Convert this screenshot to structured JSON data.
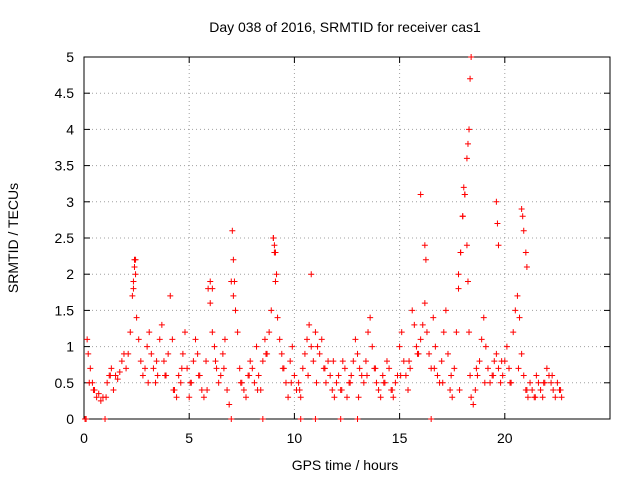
{
  "chart_data": {
    "type": "scatter",
    "title": "Day 038 of 2016, SRMTID for receiver cas1",
    "xlabel": "GPS time / hours",
    "ylabel": "SRMTID / TECUs",
    "xlim": [
      0,
      25
    ],
    "ylim": [
      0,
      5
    ],
    "grid": true,
    "marker": "+",
    "color": "#ff0000",
    "x_ticks": [
      "0",
      "5",
      "10",
      "15",
      "20"
    ],
    "x_tick_values": [
      0,
      5,
      10,
      15,
      20
    ],
    "y_ticks": [
      "0",
      "0.5",
      "1",
      "1.5",
      "2",
      "2.5",
      "3",
      "3.5",
      "4",
      "4.5",
      "5"
    ],
    "y_tick_values": [
      0,
      0.5,
      1,
      1.5,
      2,
      2.5,
      3,
      3.5,
      4,
      4.5,
      5
    ],
    "series": [
      {
        "name": "SRMTID",
        "x": [
          0.05,
          0.1,
          1.0,
          7.0,
          8.5,
          10.3,
          11.0,
          12.2,
          13.0,
          16.5,
          0.15,
          0.2,
          0.3,
          0.4,
          0.5,
          0.6,
          0.7,
          0.8,
          0.9,
          1.1,
          1.2,
          1.3,
          1.4,
          1.5,
          1.6,
          1.7,
          1.8,
          1.9,
          2.0,
          2.1,
          2.2,
          2.3,
          2.35,
          2.4,
          2.45,
          2.5,
          2.6,
          2.7,
          2.8,
          2.9,
          3.0,
          3.1,
          3.2,
          3.3,
          3.4,
          3.5,
          3.6,
          3.7,
          3.8,
          3.9,
          4.0,
          4.1,
          4.2,
          4.3,
          4.4,
          4.5,
          4.6,
          4.7,
          4.8,
          4.9,
          5.0,
          5.1,
          5.2,
          5.3,
          5.4,
          5.5,
          5.6,
          5.7,
          5.8,
          5.9,
          6.0,
          6.1,
          6.2,
          6.3,
          6.4,
          6.5,
          6.6,
          6.7,
          6.8,
          6.9,
          7.0,
          7.1,
          7.2,
          7.3,
          7.4,
          7.5,
          7.6,
          7.7,
          7.8,
          7.9,
          8.0,
          8.1,
          8.2,
          8.3,
          8.4,
          8.5,
          8.6,
          8.7,
          8.8,
          8.9,
          9.0,
          9.05,
          9.1,
          9.2,
          9.3,
          9.4,
          9.5,
          9.6,
          9.7,
          9.8,
          9.9,
          10.0,
          10.1,
          10.2,
          10.3,
          10.4,
          10.5,
          10.6,
          10.7,
          10.8,
          10.9,
          11.0,
          11.1,
          11.2,
          11.3,
          11.4,
          11.5,
          11.6,
          11.7,
          11.8,
          11.9,
          12.0,
          12.1,
          12.2,
          12.3,
          12.4,
          12.5,
          12.6,
          12.7,
          12.8,
          12.9,
          13.0,
          13.1,
          13.2,
          13.3,
          13.4,
          13.5,
          13.6,
          13.7,
          13.8,
          13.9,
          14.0,
          14.1,
          14.2,
          14.3,
          14.4,
          14.5,
          14.6,
          14.7,
          14.8,
          14.9,
          15.0,
          15.1,
          15.2,
          15.3,
          15.4,
          15.5,
          15.6,
          15.7,
          15.8,
          15.9,
          16.0,
          16.1,
          16.2,
          16.3,
          16.4,
          16.5,
          16.6,
          16.7,
          16.8,
          16.9,
          17.0,
          17.1,
          17.2,
          17.3,
          17.4,
          17.5,
          17.6,
          17.7,
          17.8,
          17.9,
          18.0,
          18.1,
          18.2,
          18.25,
          18.3,
          18.35,
          18.4,
          18.5,
          18.6,
          18.7,
          18.8,
          18.9,
          19.0,
          19.1,
          19.2,
          19.3,
          19.4,
          19.5,
          19.6,
          19.7,
          19.8,
          19.9,
          20.0,
          20.1,
          20.2,
          20.3,
          20.4,
          20.5,
          20.6,
          20.7,
          20.8,
          20.9,
          21.0,
          21.1,
          21.2,
          21.3,
          21.4,
          21.5,
          21.6,
          21.7,
          21.8,
          21.9,
          22.0,
          22.1,
          22.2,
          22.3,
          22.4,
          22.5,
          22.6,
          22.7,
          2.35,
          2.4,
          2.45,
          6.0,
          6.1,
          7.05,
          7.1,
          7.15,
          9.0,
          9.05,
          9.1,
          9.15,
          10.8,
          16.0,
          16.2,
          16.25,
          17.8,
          17.9,
          18.0,
          18.05,
          18.1,
          18.2,
          18.25,
          18.3,
          18.35,
          18.4,
          19.6,
          19.65,
          19.7,
          20.8,
          20.85,
          20.9,
          21.0,
          21.05,
          0.25,
          0.45,
          1.05,
          1.25,
          3.05,
          3.45,
          3.85,
          4.25,
          4.65,
          5.05,
          5.45,
          5.85,
          6.25,
          6.65,
          7.45,
          7.85,
          8.25,
          8.65,
          9.45,
          9.85,
          10.25,
          10.65,
          11.05,
          11.45,
          11.85,
          12.25,
          12.65,
          13.05,
          13.45,
          13.85,
          14.25,
          14.65,
          15.05,
          15.45,
          15.85,
          16.65,
          17.05,
          17.45,
          17.85,
          18.65,
          19.05,
          19.45,
          19.85,
          20.25,
          20.65,
          21.05,
          21.45,
          21.85,
          22.25,
          22.65
        ],
        "y": [
          0.0,
          0.0,
          0.0,
          0.0,
          0.0,
          0.0,
          0.0,
          0.0,
          0.0,
          0.0,
          1.1,
          0.9,
          0.7,
          0.5,
          0.4,
          0.3,
          0.35,
          0.25,
          0.3,
          0.5,
          0.6,
          0.7,
          0.4,
          0.6,
          0.55,
          0.65,
          0.8,
          0.9,
          0.7,
          0.9,
          1.2,
          1.7,
          1.9,
          2.2,
          2.0,
          1.4,
          1.1,
          0.8,
          0.6,
          0.7,
          1.0,
          1.2,
          0.9,
          0.7,
          0.5,
          0.6,
          1.1,
          1.3,
          0.8,
          0.6,
          0.9,
          1.7,
          1.1,
          0.4,
          0.3,
          0.6,
          0.5,
          0.9,
          1.2,
          0.7,
          0.3,
          0.5,
          0.8,
          1.1,
          0.9,
          0.6,
          0.4,
          0.3,
          0.8,
          1.8,
          1.6,
          1.2,
          1.0,
          0.7,
          0.5,
          0.6,
          0.9,
          1.1,
          0.4,
          0.2,
          1.9,
          1.7,
          1.5,
          1.2,
          0.7,
          0.5,
          0.4,
          0.3,
          0.6,
          0.8,
          0.7,
          0.5,
          1.0,
          0.6,
          0.4,
          0.8,
          1.1,
          0.9,
          1.2,
          1.5,
          2.5,
          2.3,
          1.9,
          1.4,
          1.1,
          0.9,
          0.7,
          0.5,
          0.3,
          0.8,
          1.0,
          0.6,
          0.4,
          0.5,
          0.3,
          0.7,
          0.9,
          1.1,
          1.3,
          1.0,
          0.8,
          1.2,
          1.0,
          0.9,
          1.1,
          0.7,
          0.5,
          0.8,
          0.6,
          0.4,
          0.3,
          0.5,
          0.6,
          0.4,
          0.8,
          0.7,
          0.3,
          0.5,
          0.6,
          0.8,
          1.1,
          0.9,
          0.7,
          0.6,
          0.5,
          0.8,
          1.2,
          1.4,
          1.0,
          0.7,
          0.5,
          0.4,
          0.3,
          0.6,
          0.5,
          0.8,
          0.7,
          0.4,
          0.3,
          0.5,
          0.6,
          1.0,
          1.2,
          0.8,
          0.6,
          0.4,
          0.7,
          1.5,
          1.3,
          1.0,
          0.9,
          1.1,
          1.3,
          1.6,
          1.2,
          0.9,
          0.7,
          1.4,
          1.0,
          0.6,
          0.5,
          0.8,
          1.2,
          1.5,
          0.9,
          0.4,
          0.3,
          0.7,
          1.2,
          1.8,
          2.3,
          2.8,
          3.1,
          2.4,
          1.9,
          1.2,
          0.6,
          0.3,
          0.2,
          0.4,
          0.6,
          0.8,
          1.1,
          1.4,
          1.0,
          0.7,
          0.5,
          0.6,
          0.8,
          0.9,
          0.7,
          0.5,
          0.6,
          0.8,
          1.0,
          0.7,
          0.5,
          1.2,
          1.5,
          1.7,
          1.4,
          0.9,
          0.6,
          0.4,
          0.3,
          0.5,
          0.4,
          0.3,
          0.6,
          0.5,
          0.4,
          0.3,
          0.5,
          0.7,
          0.6,
          0.5,
          0.4,
          0.3,
          0.5,
          0.4,
          0.3,
          1.8,
          2.1,
          2.2,
          1.9,
          1.8,
          2.6,
          2.2,
          1.9,
          2.5,
          2.4,
          2.3,
          2.0,
          2.0,
          3.1,
          2.4,
          2.2,
          2.0,
          2.3,
          2.8,
          3.2,
          3.1,
          3.6,
          3.8,
          4.0,
          4.7,
          5.0,
          3.0,
          2.7,
          2.4,
          2.9,
          2.8,
          2.6,
          2.3,
          2.1,
          0.5,
          0.4,
          0.3,
          0.6,
          0.5,
          0.8,
          0.6,
          0.4,
          0.7,
          0.5,
          0.6,
          0.4,
          0.8,
          0.7,
          0.5,
          0.6,
          0.4,
          0.9,
          0.7,
          0.5,
          0.4,
          0.6,
          0.5,
          0.7,
          0.8,
          0.4,
          0.5,
          0.3,
          0.6,
          0.7,
          0.5,
          0.4,
          0.6,
          0.8,
          0.9,
          0.7,
          0.5,
          0.6,
          0.4,
          0.7,
          0.5,
          0.6,
          0.8,
          0.5,
          0.7,
          0.4,
          0.3,
          0.5,
          0.6,
          0.4
        ]
      }
    ]
  }
}
